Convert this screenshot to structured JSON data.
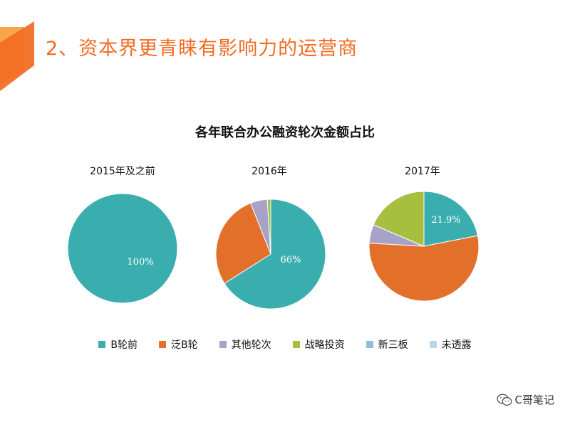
{
  "slide": {
    "title": "2、资本界更青睐有影响力的运营商",
    "accent_color": "#f26b21"
  },
  "chart_data": {
    "type": "pie",
    "title": "各年联合办公融资轮次金额占比",
    "categories": [
      "B轮前",
      "泛B轮",
      "其他轮次",
      "战略投资",
      "新三板",
      "未透露"
    ],
    "colors": [
      "#3aaeae",
      "#e26f2a",
      "#a8a2c8",
      "#a6bf3f",
      "#8fbfd8",
      "#b9d7e6"
    ],
    "legend_position": "bottom",
    "pies": [
      {
        "label": "2015年及之前",
        "values": [
          100,
          0,
          0,
          0,
          0,
          0
        ],
        "data_label": "100%"
      },
      {
        "label": "2016年",
        "values": [
          66,
          28,
          5,
          1,
          0,
          0
        ],
        "data_label": "66%"
      },
      {
        "label": "2017年",
        "values": [
          21.9,
          54,
          5.5,
          18.6,
          0,
          0
        ],
        "data_label": "21.9%"
      }
    ]
  },
  "watermark": {
    "text": "C哥笔记",
    "icon": "wechat-icon"
  }
}
